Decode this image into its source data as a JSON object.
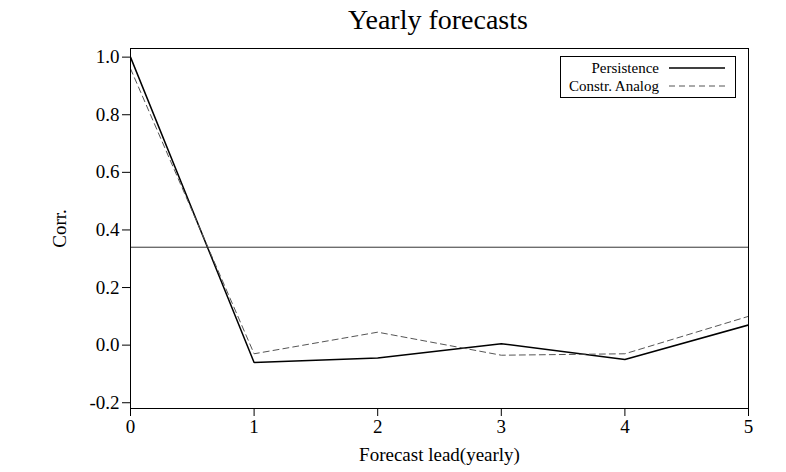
{
  "chart_data": {
    "type": "line",
    "title": "Yearly forecasts",
    "x_label": "Forecast lead(yearly)",
    "y_label": "Corr.",
    "x": [
      0,
      1,
      2,
      3,
      4,
      5
    ],
    "series": [
      {
        "name": "Persistence",
        "color": "#000000",
        "line_style": "solid",
        "values": [
          1.0,
          -0.06,
          -0.045,
          0.005,
          -0.05,
          0.07
        ]
      },
      {
        "name": "Constr. Analog",
        "color": "#555555",
        "line_style": "dashed",
        "values": [
          0.96,
          -0.03,
          0.045,
          -0.035,
          -0.03,
          0.1
        ]
      }
    ],
    "threshold": 0.34,
    "xlim": [
      0,
      5
    ],
    "xticks": [
      0,
      1,
      2,
      3,
      4,
      5
    ],
    "ylim": [
      -0.22,
      1.03
    ],
    "yticks": [
      {
        "value": -0.2,
        "label": "-0.2"
      },
      {
        "value": 0,
        "label": "0.0"
      },
      0.2,
      0.4,
      0.6,
      0.8,
      {
        "value": 1,
        "label": "1.0"
      }
    ],
    "legend": "top-right",
    "grid": false
  }
}
